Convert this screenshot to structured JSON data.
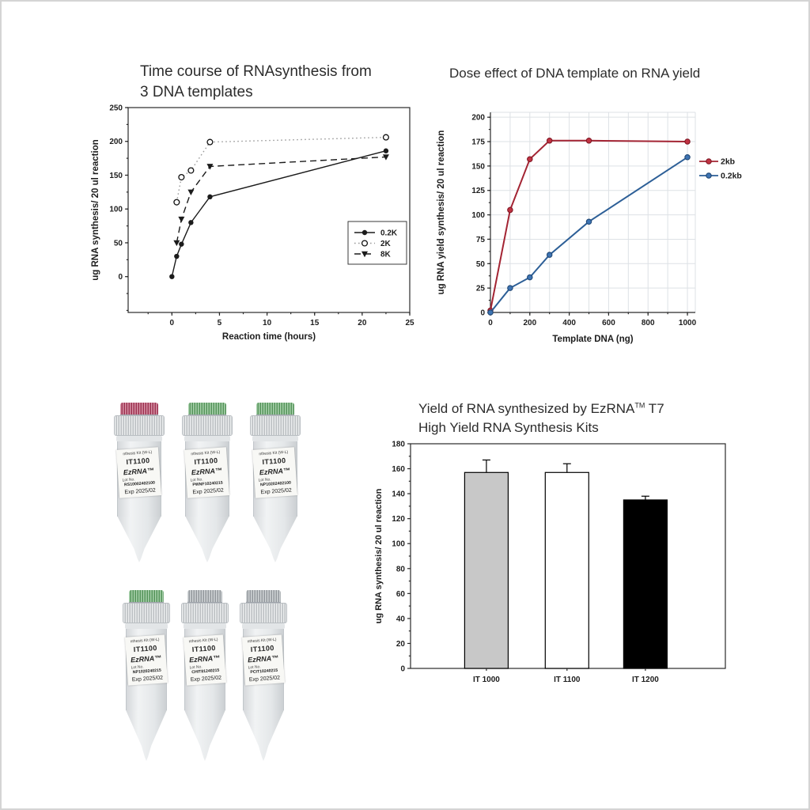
{
  "page": {
    "background": "#ffffff",
    "border_color": "#d4d4d4"
  },
  "chart_data": [
    {
      "id": "time-course",
      "type": "line",
      "title_lines": [
        "Time course of RNAsynthesis from",
        "3 DNA templates"
      ],
      "xlabel": "Reaction time (hours)",
      "ylabel": "ug RNA synthesis/ 20 ul reaction",
      "xlim": [
        -4.6,
        25
      ],
      "ylim": [
        -53,
        250
      ],
      "xticks": [
        0,
        5,
        10,
        15,
        20,
        25
      ],
      "yticks": [
        0,
        50,
        100,
        150,
        200,
        250
      ],
      "grid": false,
      "legend_position": "inside-box-right",
      "series": [
        {
          "name": "0.2K",
          "line": "solid",
          "marker": "filled-circle",
          "color": "#1b1b1b",
          "x": [
            0,
            0.5,
            1,
            2,
            4,
            22.5
          ],
          "y": [
            0,
            30,
            48,
            80,
            118,
            186
          ]
        },
        {
          "name": "2K",
          "line": "dotted",
          "marker": "open-circle",
          "color": "#9b9b9b",
          "marker_stroke": "#111111",
          "x": [
            0.5,
            1,
            2,
            4,
            22.5
          ],
          "y": [
            110,
            147,
            157,
            199,
            206
          ]
        },
        {
          "name": "8K",
          "line": "dashed",
          "marker": "filled-triangle-down",
          "color": "#1b1b1b",
          "x": [
            0.5,
            1,
            2,
            4,
            22.5
          ],
          "y": [
            50,
            85,
            125,
            163,
            177
          ]
        }
      ]
    },
    {
      "id": "dose-effect",
      "type": "line",
      "title_lines": [
        "Dose effect of DNA template on RNA yield"
      ],
      "xlabel": "Template DNA (ng)",
      "ylabel": "ug RNA yield synthesis/ 20 ul reaction",
      "xlim": [
        0,
        1040
      ],
      "ylim": [
        0,
        205
      ],
      "xticks": [
        0,
        200,
        400,
        600,
        800,
        1000
      ],
      "yticks": [
        0,
        25,
        50,
        75,
        100,
        125,
        150,
        175,
        200
      ],
      "grid": true,
      "grid_color": "#dde1e5",
      "legend_position": "outside-right",
      "series": [
        {
          "name": "2kb",
          "line": "solid",
          "marker": "filled-circle",
          "color": "#a32433",
          "marker_color": "#c13343",
          "marker_stroke": "#811824",
          "width": 2,
          "x": [
            0,
            100,
            200,
            300,
            500,
            1000
          ],
          "y": [
            2,
            105,
            157,
            176,
            176,
            175
          ]
        },
        {
          "name": "0.2kb",
          "line": "solid",
          "marker": "filled-circle",
          "color": "#2d5f97",
          "marker_color": "#3e74b3",
          "marker_stroke": "#1f4775",
          "width": 2,
          "x": [
            0,
            100,
            200,
            300,
            500,
            1000
          ],
          "y": [
            0,
            25,
            36,
            59,
            93,
            159
          ]
        }
      ]
    },
    {
      "id": "yield-bars",
      "type": "bar",
      "title_pre": "Yield of RNA synthesized by EzRNA",
      "title_tm": "TM",
      "title_post": " T7",
      "title_line2": "High Yield RNA Synthesis Kits",
      "ylabel": "ug RNA synthesis/ 20 ul reaction",
      "categories": [
        "IT 1000",
        "IT 1100",
        "IT 1200"
      ],
      "values": [
        157,
        157,
        135
      ],
      "errors": [
        10,
        7,
        3
      ],
      "bar_colors": [
        "#c8c8c8",
        "#ffffff",
        "#000000"
      ],
      "bar_border": "#000000",
      "ylim": [
        0,
        180
      ],
      "yticks": [
        0,
        20,
        40,
        60,
        80,
        100,
        120,
        140,
        160,
        180
      ]
    }
  ],
  "tubes": {
    "row1": [
      {
        "cap_color": "#b53a5d",
        "kit_line": "nthesis Kit (W-L)",
        "model": "IT1100",
        "brand": "EzRNA™",
        "lot_label": "Lot No.",
        "lot": "RS10002402100",
        "exp": "Exp 2025/02"
      },
      {
        "cap_color": "#62ab68",
        "kit_line": "nthesis Kit (W-L)",
        "model": "IT1100",
        "brand": "EzRNA™",
        "lot_label": "Lot No.",
        "lot": "PWNF10240215",
        "exp": "Exp 2025/02"
      },
      {
        "cap_color": "#62ab68",
        "kit_line": "nthesis Kit (W-L)",
        "model": "IT1100",
        "brand": "EzRNA™",
        "lot_label": "Lot No.",
        "lot": "NP10202402100",
        "exp": "Exp 2025/02"
      }
    ],
    "row2": [
      {
        "cap_color": "#62ab68",
        "kit_line": "nthesis Kit (W-L)",
        "model": "IT1100",
        "brand": "EzRNA™",
        "lot_label": "Lot No.",
        "lot": "NP1020240215",
        "exp": "Exp 2025/02"
      },
      {
        "cap_color": "#aab0b5",
        "kit_line": "nthesis Kit (W-L)",
        "model": "IT1100",
        "brand": "EzRNA™",
        "lot_label": "Lot No.",
        "lot": "CHIT81240215",
        "exp": "Exp 2025/02"
      },
      {
        "cap_color": "#aab0b5",
        "kit_line": "nthesis Kit (W-L)",
        "model": "IT1100",
        "brand": "EzRNA™",
        "lot_label": "Lot No.",
        "lot": "PCIT10240215",
        "exp": "Exp 2025/02"
      }
    ]
  }
}
